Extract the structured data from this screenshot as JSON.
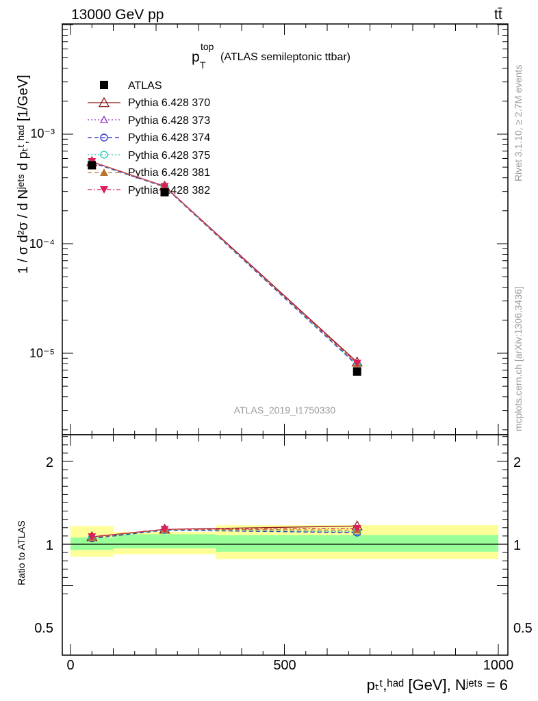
{
  "header": {
    "energy_label": "13000 GeV pp",
    "process_label": "tt̄",
    "plot_title_main": "p",
    "plot_title_sup": "top",
    "plot_title_sub": "T",
    "plot_title_rest": "(ATLAS semileptonic ttbar)",
    "analysis_id": "ATLAS_2019_I1750330",
    "side_rivet": "Rivet 3.1.10, ≥ 2.7M events",
    "side_mcplots": "mcplots.cern.ch [arXiv:1306.3436]"
  },
  "axes": {
    "ylabel_main": "1 / σ d²σ / d Nʲᵉᵗˢ d pₜᵗ,ʰᵃᵈ [1/GeV]",
    "ylabel_ratio": "Ratio to ATLAS",
    "xlabel": "pₜᵗ,ʰᵃᵈ [GeV], Nʲᵉᵗˢ = 6",
    "main_ticks": [
      "10⁻³",
      "10⁻⁴",
      "10⁻⁵"
    ],
    "ratio_ticks_left": [
      "2",
      "1",
      "0.5"
    ],
    "ratio_ticks_right": [
      "2",
      "1",
      "0.5"
    ],
    "x_ticks": [
      "0",
      "500",
      "1000"
    ]
  },
  "legend": [
    {
      "label": "ATLAS",
      "color": "#000000",
      "marker": "filled-square",
      "style": "none"
    },
    {
      "label": "Pythia 6.428 370",
      "color": "#8b1a1a",
      "marker": "open-triangle",
      "style": "solid"
    },
    {
      "label": "Pythia 6.428 373",
      "color": "#9932cc",
      "marker": "open-triangle-small",
      "style": "dotted"
    },
    {
      "label": "Pythia 6.428 374",
      "color": "#2222cc",
      "marker": "open-circle",
      "style": "dashed"
    },
    {
      "label": "Pythia 6.428 375",
      "color": "#20c6b0",
      "marker": "open-circle",
      "style": "dotted"
    },
    {
      "label": "Pythia 6.428 381",
      "color": "#b87333",
      "marker": "filled-triangle",
      "style": "dashed"
    },
    {
      "label": "Pythia 6.428 382",
      "color": "#dc1f5a",
      "marker": "filled-triangle-down",
      "style": "dashdot"
    }
  ],
  "chart_data": {
    "type": "line",
    "x_scale": "linear",
    "y_scale": "log",
    "xlim": [
      -20,
      1000
    ],
    "ylim_main": [
      2.2e-06,
      0.01
    ],
    "ylim_ratio": [
      0.4,
      2.3
    ],
    "bins": [
      [
        0,
        100
      ],
      [
        100,
        340
      ],
      [
        340,
        1000
      ]
    ],
    "x": [
      50,
      220,
      670
    ],
    "data": {
      "name": "ATLAS",
      "values": [
        0.00052,
        0.000295,
        6.8e-06
      ],
      "ratio_band_total": [
        [
          0.85,
          1.22
        ],
        [
          0.88,
          1.15
        ],
        [
          0.82,
          1.23
        ]
      ],
      "ratio_band_stat": [
        [
          0.93,
          1.08
        ],
        [
          0.95,
          1.12
        ],
        [
          0.91,
          1.11
        ]
      ]
    },
    "series": [
      {
        "name": "Pythia 6.428 370",
        "values": [
          0.00056,
          0.000335,
          8.3e-06
        ],
        "ratio": [
          1.09,
          1.18,
          1.22
        ]
      },
      {
        "name": "Pythia 6.428 373",
        "values": [
          0.000555,
          0.00033,
          7.8e-06
        ],
        "ratio": [
          1.08,
          1.17,
          1.15
        ]
      },
      {
        "name": "Pythia 6.428 374",
        "values": [
          0.00055,
          0.00033,
          7.75e-06
        ],
        "ratio": [
          1.07,
          1.17,
          1.14
        ]
      },
      {
        "name": "Pythia 6.428 375",
        "values": [
          0.000555,
          0.000332,
          7.8e-06
        ],
        "ratio": [
          1.08,
          1.17,
          1.15
        ]
      },
      {
        "name": "Pythia 6.428 381",
        "values": [
          0.00056,
          0.000333,
          8e-06
        ],
        "ratio": [
          1.08,
          1.18,
          1.17
        ]
      },
      {
        "name": "Pythia 6.428 382",
        "values": [
          0.000562,
          0.000334,
          8.1e-06
        ],
        "ratio": [
          1.09,
          1.18,
          1.19
        ]
      }
    ]
  }
}
